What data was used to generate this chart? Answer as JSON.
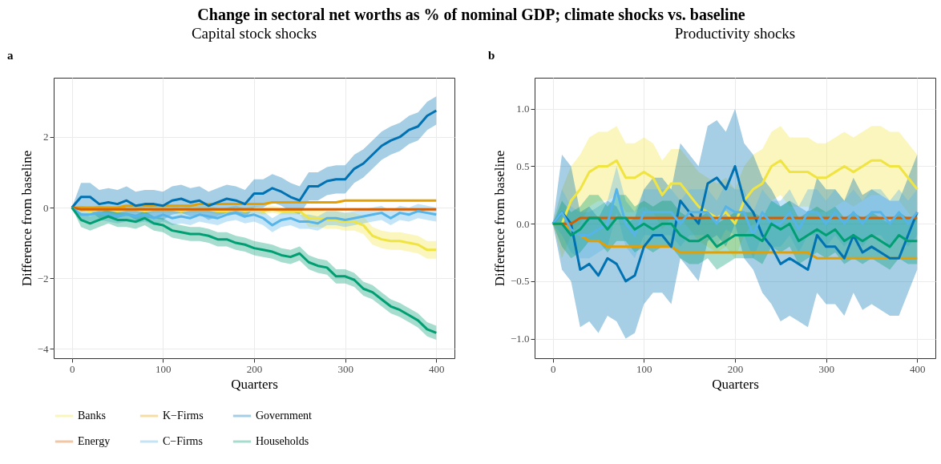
{
  "chart_data": [
    {
      "type": "line",
      "title": "Capital stock shocks",
      "xlabel": "Quarters",
      "ylabel": "Difference from baseline",
      "annotations": [
        "Change in sectoral net worths as % of nominal GDP; climate shocks vs. baseline",
        "a"
      ],
      "grid": true,
      "legend": "bottom",
      "xlim": [
        -20,
        420
      ],
      "xticks": [
        0,
        100,
        200,
        300,
        400
      ],
      "ylim": [
        -4.27,
        3.68
      ],
      "yticks": [
        {
          "value": -4,
          "label": "−4"
        },
        {
          "value": -2,
          "label": "−2"
        },
        0,
        2
      ],
      "x": [
        0,
        10,
        20,
        30,
        40,
        50,
        60,
        70,
        80,
        90,
        100,
        110,
        120,
        130,
        140,
        150,
        160,
        170,
        180,
        190,
        200,
        210,
        220,
        230,
        240,
        250,
        260,
        270,
        280,
        290,
        300,
        310,
        320,
        330,
        340,
        350,
        360,
        370,
        380,
        390,
        400
      ],
      "series": [
        {
          "name": "Banks",
          "color": "#f0e442",
          "values": [
            0,
            -0.05,
            -0.1,
            -0.05,
            -0.05,
            -0.1,
            -0.05,
            -0.05,
            -0.1,
            -0.05,
            -0.05,
            -0.05,
            -0.1,
            -0.05,
            -0.05,
            -0.05,
            -0.1,
            -0.1,
            -0.05,
            -0.1,
            -0.05,
            -0.1,
            -0.05,
            -0.1,
            -0.1,
            -0.1,
            -0.3,
            -0.3,
            -0.35,
            -0.35,
            -0.4,
            -0.4,
            -0.5,
            -0.8,
            -0.9,
            -0.95,
            -0.95,
            -1.0,
            -1.05,
            -1.2,
            -1.2
          ],
          "lower": [
            0,
            -0.15,
            -0.2,
            -0.15,
            -0.15,
            -0.2,
            -0.15,
            -0.15,
            -0.2,
            -0.15,
            -0.15,
            -0.15,
            -0.2,
            -0.15,
            -0.15,
            -0.15,
            -0.2,
            -0.2,
            -0.15,
            -0.2,
            -0.15,
            -0.2,
            -0.15,
            -0.2,
            -0.2,
            -0.2,
            -0.55,
            -0.55,
            -0.6,
            -0.6,
            -0.65,
            -0.65,
            -0.75,
            -1.05,
            -1.15,
            -1.2,
            -1.2,
            -1.25,
            -1.3,
            -1.45,
            -1.45
          ],
          "upper": [
            0,
            0.05,
            0,
            0.05,
            0.05,
            0,
            0.05,
            0.05,
            0,
            0.05,
            0.05,
            0.05,
            0,
            0.05,
            0.05,
            0.05,
            0,
            0,
            0.05,
            0,
            0.05,
            0,
            0.05,
            0,
            0,
            0,
            -0.05,
            -0.05,
            -0.1,
            -0.1,
            -0.15,
            -0.15,
            -0.25,
            -0.55,
            -0.65,
            -0.7,
            -0.7,
            -0.75,
            -0.8,
            -0.95,
            -0.95
          ]
        },
        {
          "name": "K−Firms",
          "color": "#e69f00",
          "values": [
            0,
            0,
            0,
            0,
            0,
            0,
            0.05,
            0.05,
            0.05,
            0.05,
            0.05,
            0.05,
            0.05,
            0.05,
            0.1,
            0.1,
            0.1,
            0.1,
            0.1,
            0.1,
            0.1,
            0.1,
            0.15,
            0.15,
            0.15,
            0.15,
            0.15,
            0.15,
            0.15,
            0.15,
            0.2,
            0.2,
            0.2,
            0.2,
            0.2,
            0.2,
            0.2,
            0.2,
            0.2,
            0.2,
            0.2
          ]
        },
        {
          "name": "Government",
          "color": "#0072b2",
          "values": [
            0,
            0.3,
            0.3,
            0.1,
            0.15,
            0.1,
            0.2,
            0.05,
            0.1,
            0.1,
            0.05,
            0.2,
            0.25,
            0.15,
            0.2,
            0.05,
            0.15,
            0.25,
            0.2,
            0.1,
            0.4,
            0.4,
            0.55,
            0.45,
            0.3,
            0.2,
            0.6,
            0.6,
            0.75,
            0.8,
            0.8,
            1.1,
            1.25,
            1.5,
            1.75,
            1.9,
            2.0,
            2.2,
            2.3,
            2.6,
            2.75
          ],
          "lower": [
            0,
            -0.1,
            -0.1,
            -0.3,
            -0.25,
            -0.3,
            -0.2,
            -0.35,
            -0.3,
            -0.3,
            -0.35,
            -0.2,
            -0.15,
            -0.25,
            -0.2,
            -0.35,
            -0.25,
            -0.15,
            -0.2,
            -0.3,
            0,
            0,
            0.15,
            0.05,
            -0.1,
            -0.2,
            0.2,
            0.2,
            0.35,
            0.4,
            0.4,
            0.7,
            0.85,
            1.1,
            1.35,
            1.5,
            1.6,
            1.8,
            1.9,
            2.2,
            2.35
          ],
          "upper": [
            0,
            0.7,
            0.7,
            0.5,
            0.55,
            0.5,
            0.6,
            0.45,
            0.5,
            0.5,
            0.45,
            0.6,
            0.65,
            0.55,
            0.6,
            0.45,
            0.55,
            0.65,
            0.6,
            0.5,
            0.8,
            0.8,
            0.95,
            0.85,
            0.7,
            0.6,
            1.0,
            1.0,
            1.15,
            1.2,
            1.2,
            1.5,
            1.65,
            1.9,
            2.15,
            2.3,
            2.4,
            2.6,
            2.7,
            3.0,
            3.15
          ]
        },
        {
          "name": "Energy",
          "color": "#d55e00",
          "values": [
            0,
            -0.05,
            -0.05,
            -0.05,
            -0.05,
            -0.05,
            -0.05,
            -0.05,
            -0.05,
            -0.05,
            -0.05,
            -0.05,
            -0.05,
            -0.05,
            -0.05,
            -0.05,
            -0.05,
            -0.05,
            -0.05,
            -0.05,
            -0.05,
            -0.05,
            -0.05,
            -0.05,
            -0.05,
            -0.05,
            -0.05,
            -0.05,
            -0.05,
            -0.05,
            -0.05,
            -0.05,
            -0.05,
            -0.05,
            -0.05,
            -0.05,
            -0.05,
            -0.05,
            -0.05,
            -0.05,
            -0.05
          ]
        },
        {
          "name": "C−Firms",
          "color": "#56b4e9",
          "values": [
            0,
            -0.2,
            -0.2,
            -0.15,
            -0.2,
            -0.25,
            -0.2,
            -0.25,
            -0.2,
            -0.3,
            -0.2,
            -0.3,
            -0.25,
            -0.3,
            -0.2,
            -0.25,
            -0.3,
            -0.2,
            -0.15,
            -0.25,
            -0.2,
            -0.3,
            -0.5,
            -0.35,
            -0.3,
            -0.4,
            -0.4,
            -0.45,
            -0.3,
            -0.3,
            -0.35,
            -0.3,
            -0.25,
            -0.2,
            -0.15,
            -0.3,
            -0.15,
            -0.2,
            -0.1,
            -0.15,
            -0.2
          ],
          "lower": [
            0,
            -0.4,
            -0.4,
            -0.35,
            -0.4,
            -0.45,
            -0.4,
            -0.45,
            -0.4,
            -0.5,
            -0.4,
            -0.5,
            -0.45,
            -0.5,
            -0.4,
            -0.45,
            -0.5,
            -0.4,
            -0.35,
            -0.45,
            -0.4,
            -0.5,
            -0.7,
            -0.55,
            -0.5,
            -0.6,
            -0.6,
            -0.65,
            -0.5,
            -0.5,
            -0.55,
            -0.5,
            -0.45,
            -0.4,
            -0.35,
            -0.5,
            -0.35,
            -0.4,
            -0.3,
            -0.35,
            -0.4
          ],
          "upper": [
            0,
            0,
            0,
            0.05,
            0,
            -0.05,
            0,
            -0.05,
            0,
            -0.1,
            0,
            -0.1,
            -0.05,
            -0.1,
            0,
            -0.05,
            -0.1,
            0,
            0.05,
            -0.05,
            0,
            -0.1,
            -0.3,
            -0.15,
            -0.1,
            -0.2,
            -0.2,
            -0.25,
            -0.1,
            -0.1,
            -0.15,
            -0.1,
            -0.05,
            0,
            0.05,
            -0.1,
            0.05,
            0,
            0.1,
            0.05,
            0
          ]
        },
        {
          "name": "Households",
          "color": "#009e73",
          "values": [
            0,
            -0.35,
            -0.45,
            -0.35,
            -0.25,
            -0.35,
            -0.35,
            -0.4,
            -0.3,
            -0.45,
            -0.5,
            -0.65,
            -0.7,
            -0.75,
            -0.75,
            -0.8,
            -0.9,
            -0.9,
            -1.0,
            -1.05,
            -1.15,
            -1.2,
            -1.25,
            -1.35,
            -1.4,
            -1.3,
            -1.55,
            -1.65,
            -1.7,
            -1.95,
            -1.95,
            -2.05,
            -2.3,
            -2.4,
            -2.6,
            -2.8,
            -2.9,
            -3.05,
            -3.2,
            -3.45,
            -3.55
          ],
          "lower": [
            0,
            -0.55,
            -0.65,
            -0.55,
            -0.45,
            -0.55,
            -0.55,
            -0.6,
            -0.5,
            -0.65,
            -0.7,
            -0.85,
            -0.9,
            -0.95,
            -0.95,
            -1.0,
            -1.1,
            -1.1,
            -1.2,
            -1.25,
            -1.35,
            -1.4,
            -1.45,
            -1.55,
            -1.6,
            -1.5,
            -1.75,
            -1.85,
            -1.9,
            -2.15,
            -2.15,
            -2.25,
            -2.5,
            -2.6,
            -2.8,
            -3.0,
            -3.1,
            -3.25,
            -3.4,
            -3.65,
            -3.75
          ],
          "upper": [
            0,
            -0.15,
            -0.25,
            -0.15,
            -0.05,
            -0.15,
            -0.15,
            -0.2,
            -0.1,
            -0.25,
            -0.3,
            -0.45,
            -0.5,
            -0.55,
            -0.55,
            -0.6,
            -0.7,
            -0.7,
            -0.8,
            -0.85,
            -0.95,
            -1.0,
            -1.05,
            -1.15,
            -1.2,
            -1.1,
            -1.35,
            -1.45,
            -1.5,
            -1.75,
            -1.75,
            -1.85,
            -2.1,
            -2.2,
            -2.4,
            -2.6,
            -2.7,
            -2.85,
            -3.0,
            -3.25,
            -3.35
          ]
        }
      ]
    },
    {
      "type": "line",
      "title": "Productivity shocks",
      "xlabel": "Quarters",
      "ylabel": "Difference from baseline",
      "annotations": [
        "b"
      ],
      "grid": true,
      "xlim": [
        -20,
        420
      ],
      "xticks": [
        0,
        100,
        200,
        300,
        400
      ],
      "ylim": [
        -1.17,
        1.27
      ],
      "yticks": [
        {
          "value": -1,
          "label": "−1.0"
        },
        {
          "value": -0.5,
          "label": "−0.5"
        },
        {
          "value": 0,
          "label": "0.0"
        },
        0.5,
        {
          "value": 1,
          "label": "1.0"
        }
      ],
      "x": [
        0,
        10,
        20,
        30,
        40,
        50,
        60,
        70,
        80,
        90,
        100,
        110,
        120,
        130,
        140,
        150,
        160,
        170,
        180,
        190,
        200,
        210,
        220,
        230,
        240,
        250,
        260,
        270,
        280,
        290,
        300,
        310,
        320,
        330,
        340,
        350,
        360,
        370,
        380,
        390,
        400
      ],
      "series": [
        {
          "name": "Banks",
          "color": "#f0e442",
          "values": [
            0,
            0,
            0.2,
            0.3,
            0.45,
            0.5,
            0.5,
            0.55,
            0.4,
            0.4,
            0.45,
            0.4,
            0.25,
            0.35,
            0.35,
            0.25,
            0.15,
            0.1,
            0.05,
            0.1,
            0,
            0.2,
            0.3,
            0.35,
            0.5,
            0.55,
            0.45,
            0.45,
            0.45,
            0.4,
            0.4,
            0.45,
            0.5,
            0.45,
            0.5,
            0.55,
            0.55,
            0.5,
            0.5,
            0.4,
            0.3
          ],
          "lower": [
            0,
            -0.3,
            -0.1,
            0,
            0.15,
            0.2,
            0.2,
            0.25,
            0.1,
            0.1,
            0.15,
            0.1,
            -0.05,
            0.05,
            0.05,
            -0.05,
            -0.15,
            -0.2,
            -0.25,
            -0.2,
            -0.3,
            -0.1,
            0,
            0.05,
            0.2,
            0.25,
            0.15,
            0.15,
            0.15,
            0.1,
            0.1,
            0.15,
            0.2,
            0.15,
            0.2,
            0.25,
            0.25,
            0.2,
            0.2,
            0.1,
            0
          ],
          "upper": [
            0,
            0.3,
            0.5,
            0.6,
            0.75,
            0.8,
            0.8,
            0.85,
            0.7,
            0.7,
            0.75,
            0.7,
            0.55,
            0.65,
            0.65,
            0.55,
            0.45,
            0.4,
            0.35,
            0.4,
            0.3,
            0.5,
            0.6,
            0.65,
            0.8,
            0.85,
            0.75,
            0.75,
            0.75,
            0.7,
            0.7,
            0.75,
            0.8,
            0.75,
            0.8,
            0.85,
            0.85,
            0.8,
            0.8,
            0.7,
            0.6
          ]
        },
        {
          "name": "K−Firms",
          "color": "#e69f00",
          "values": [
            0,
            0,
            -0.05,
            -0.1,
            -0.15,
            -0.15,
            -0.2,
            -0.2,
            -0.2,
            -0.2,
            -0.2,
            -0.2,
            -0.2,
            -0.2,
            -0.25,
            -0.25,
            -0.25,
            -0.25,
            -0.25,
            -0.25,
            -0.25,
            -0.25,
            -0.25,
            -0.25,
            -0.25,
            -0.25,
            -0.25,
            -0.25,
            -0.25,
            -0.3,
            -0.3,
            -0.3,
            -0.3,
            -0.3,
            -0.3,
            -0.3,
            -0.3,
            -0.3,
            -0.3,
            -0.3,
            -0.3
          ]
        },
        {
          "name": "Government",
          "color": "#0072b2",
          "values": [
            0,
            0.1,
            0,
            -0.4,
            -0.35,
            -0.45,
            -0.3,
            -0.35,
            -0.5,
            -0.45,
            -0.2,
            -0.1,
            -0.1,
            -0.2,
            0.2,
            0.1,
            0,
            0.35,
            0.4,
            0.3,
            0.5,
            0.2,
            0.1,
            -0.1,
            -0.2,
            -0.35,
            -0.3,
            -0.35,
            -0.4,
            -0.1,
            -0.2,
            -0.2,
            -0.3,
            -0.1,
            -0.25,
            -0.2,
            -0.25,
            -0.3,
            -0.3,
            -0.1,
            0.1
          ],
          "lower": [
            0,
            -0.4,
            -0.5,
            -0.9,
            -0.85,
            -0.95,
            -0.8,
            -0.85,
            -1.0,
            -0.95,
            -0.7,
            -0.6,
            -0.6,
            -0.7,
            -0.3,
            -0.4,
            -0.5,
            -0.15,
            -0.1,
            -0.2,
            0,
            -0.3,
            -0.4,
            -0.6,
            -0.7,
            -0.85,
            -0.8,
            -0.85,
            -0.9,
            -0.6,
            -0.7,
            -0.7,
            -0.8,
            -0.6,
            -0.75,
            -0.7,
            -0.75,
            -0.8,
            -0.8,
            -0.6,
            -0.4
          ],
          "upper": [
            0,
            0.6,
            0.5,
            0.1,
            0.15,
            0.05,
            0.2,
            0.15,
            0,
            0.05,
            0.3,
            0.4,
            0.4,
            0.3,
            0.7,
            0.6,
            0.5,
            0.85,
            0.9,
            0.8,
            1.0,
            0.7,
            0.6,
            0.4,
            0.3,
            0.15,
            0.2,
            0.15,
            0.1,
            0.4,
            0.3,
            0.3,
            0.2,
            0.4,
            0.25,
            0.3,
            0.25,
            0.2,
            0.2,
            0.4,
            0.6
          ]
        },
        {
          "name": "Energy",
          "color": "#d55e00",
          "values": [
            0,
            0,
            0,
            0.05,
            0.05,
            0.05,
            0.05,
            0.05,
            0.05,
            0.05,
            0.05,
            0.05,
            0.05,
            0.05,
            0.05,
            0.05,
            0.05,
            0.05,
            0.05,
            0.05,
            0.05,
            0.05,
            0.05,
            0.05,
            0.05,
            0.05,
            0.05,
            0.05,
            0.05,
            0.05,
            0.05,
            0.05,
            0.05,
            0.05,
            0.05,
            0.05,
            0.05,
            0.05,
            0.05,
            0.05,
            0.05
          ]
        },
        {
          "name": "C−Firms",
          "color": "#56b4e9",
          "values": [
            0,
            0.1,
            -0.05,
            -0.1,
            -0.1,
            -0.05,
            0,
            0.3,
            0,
            -0.1,
            0.1,
            0.1,
            0.1,
            0.1,
            0,
            0.1,
            0.1,
            0.1,
            0,
            0.15,
            0.1,
            0.1,
            -0.1,
            0.1,
            0,
            0,
            0.1,
            -0.05,
            0.1,
            0.1,
            0,
            0.1,
            0,
            0.1,
            0,
            0.1,
            0.1,
            0,
            0.1,
            0,
            0.1
          ],
          "lower": [
            0,
            -0.1,
            -0.25,
            -0.3,
            -0.3,
            -0.25,
            -0.2,
            0.1,
            -0.2,
            -0.3,
            -0.1,
            -0.1,
            -0.1,
            -0.1,
            -0.2,
            -0.1,
            -0.1,
            -0.1,
            -0.2,
            -0.05,
            -0.1,
            -0.1,
            -0.3,
            -0.1,
            -0.2,
            -0.2,
            -0.1,
            -0.25,
            -0.1,
            -0.1,
            -0.2,
            -0.1,
            -0.2,
            -0.1,
            -0.2,
            -0.1,
            -0.1,
            -0.2,
            -0.1,
            -0.2,
            -0.1
          ],
          "upper": [
            0,
            0.3,
            0.15,
            0.1,
            0.1,
            0.15,
            0.2,
            0.5,
            0.2,
            0.1,
            0.3,
            0.3,
            0.3,
            0.3,
            0.2,
            0.3,
            0.3,
            0.3,
            0.2,
            0.35,
            0.3,
            0.3,
            0.1,
            0.3,
            0.2,
            0.2,
            0.3,
            0.15,
            0.3,
            0.3,
            0.2,
            0.3,
            0.2,
            0.3,
            0.2,
            0.3,
            0.3,
            0.2,
            0.3,
            0.2,
            0.3
          ]
        },
        {
          "name": "Households",
          "color": "#009e73",
          "values": [
            0,
            0,
            -0.1,
            -0.05,
            0.05,
            0.05,
            -0.05,
            0.05,
            0.05,
            -0.05,
            0,
            -0.05,
            0,
            0,
            -0.1,
            -0.15,
            -0.15,
            -0.1,
            -0.2,
            -0.15,
            -0.1,
            -0.1,
            -0.1,
            -0.15,
            0,
            -0.05,
            0,
            -0.15,
            -0.1,
            -0.05,
            -0.1,
            -0.05,
            -0.15,
            -0.1,
            -0.15,
            -0.1,
            -0.15,
            -0.2,
            -0.1,
            -0.15,
            -0.15
          ],
          "lower": [
            0,
            -0.2,
            -0.3,
            -0.25,
            -0.15,
            -0.15,
            -0.25,
            -0.15,
            -0.15,
            -0.25,
            -0.2,
            -0.25,
            -0.2,
            -0.2,
            -0.3,
            -0.35,
            -0.35,
            -0.3,
            -0.4,
            -0.35,
            -0.3,
            -0.3,
            -0.3,
            -0.35,
            -0.2,
            -0.25,
            -0.2,
            -0.35,
            -0.3,
            -0.25,
            -0.3,
            -0.25,
            -0.35,
            -0.3,
            -0.35,
            -0.3,
            -0.35,
            -0.4,
            -0.3,
            -0.35,
            -0.35
          ],
          "upper": [
            0,
            0.2,
            0.1,
            0.15,
            0.25,
            0.25,
            0.15,
            0.25,
            0.25,
            0.15,
            0.2,
            0.15,
            0.2,
            0.2,
            0.1,
            0.05,
            0.05,
            0.1,
            0,
            0.05,
            0.1,
            0.1,
            0.1,
            0.05,
            0.2,
            0.15,
            0.2,
            0.05,
            0.1,
            0.15,
            0.1,
            0.15,
            0.05,
            0.1,
            0.05,
            0.1,
            0.05,
            0,
            0.1,
            0.05,
            0.05
          ]
        }
      ]
    }
  ]
}
